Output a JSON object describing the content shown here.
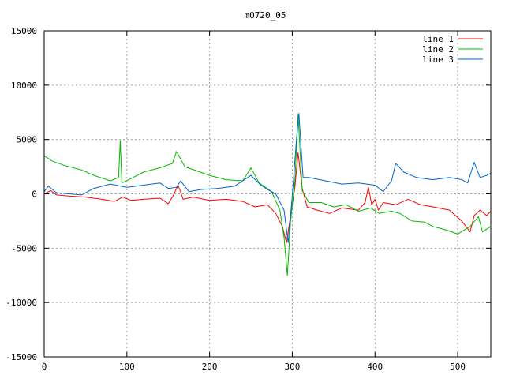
{
  "chart_data": {
    "type": "line",
    "title": "m0720_05",
    "xlabel": "",
    "ylabel": "",
    "xlim": [
      0,
      540
    ],
    "ylim": [
      -15000,
      15000
    ],
    "x_ticks": [
      0,
      100,
      200,
      300,
      400,
      500
    ],
    "y_ticks": [
      -15000,
      -10000,
      -5000,
      0,
      5000,
      10000,
      15000
    ],
    "grid": true,
    "legend_position": "top-right",
    "series": [
      {
        "name": "line 1",
        "color": "#ff0000",
        "points": [
          [
            0,
            0
          ],
          [
            8,
            300
          ],
          [
            15,
            -100
          ],
          [
            30,
            -200
          ],
          [
            50,
            -300
          ],
          [
            70,
            -500
          ],
          [
            85,
            -700
          ],
          [
            95,
            -300
          ],
          [
            105,
            -600
          ],
          [
            120,
            -500
          ],
          [
            140,
            -400
          ],
          [
            150,
            -900
          ],
          [
            155,
            -300
          ],
          [
            162,
            800
          ],
          [
            168,
            -500
          ],
          [
            180,
            -300
          ],
          [
            200,
            -600
          ],
          [
            220,
            -500
          ],
          [
            240,
            -700
          ],
          [
            255,
            -1200
          ],
          [
            270,
            -1000
          ],
          [
            280,
            -1800
          ],
          [
            288,
            -3000
          ],
          [
            293,
            -4500
          ],
          [
            298,
            -2000
          ],
          [
            303,
            500
          ],
          [
            307,
            3800
          ],
          [
            312,
            500
          ],
          [
            318,
            -1200
          ],
          [
            330,
            -1500
          ],
          [
            345,
            -1800
          ],
          [
            360,
            -1300
          ],
          [
            380,
            -1500
          ],
          [
            388,
            -800
          ],
          [
            392,
            600
          ],
          [
            396,
            -1000
          ],
          [
            400,
            -500
          ],
          [
            404,
            -1500
          ],
          [
            410,
            -800
          ],
          [
            425,
            -1000
          ],
          [
            440,
            -500
          ],
          [
            455,
            -1000
          ],
          [
            470,
            -1200
          ],
          [
            490,
            -1500
          ],
          [
            505,
            -2500
          ],
          [
            515,
            -3500
          ],
          [
            520,
            -2000
          ],
          [
            527,
            -1500
          ],
          [
            535,
            -2000
          ],
          [
            540,
            -1600
          ]
        ]
      },
      {
        "name": "line 2",
        "color": "#00bb00",
        "points": [
          [
            0,
            3500
          ],
          [
            10,
            3000
          ],
          [
            25,
            2600
          ],
          [
            45,
            2200
          ],
          [
            60,
            1700
          ],
          [
            80,
            1200
          ],
          [
            90,
            1500
          ],
          [
            92,
            4900
          ],
          [
            94,
            1000
          ],
          [
            105,
            1400
          ],
          [
            120,
            2000
          ],
          [
            140,
            2400
          ],
          [
            155,
            2800
          ],
          [
            160,
            3900
          ],
          [
            170,
            2500
          ],
          [
            185,
            2100
          ],
          [
            200,
            1700
          ],
          [
            220,
            1300
          ],
          [
            240,
            1200
          ],
          [
            250,
            2400
          ],
          [
            260,
            1000
          ],
          [
            275,
            200
          ],
          [
            285,
            -1500
          ],
          [
            290,
            -4000
          ],
          [
            294,
            -7500
          ],
          [
            298,
            -2500
          ],
          [
            303,
            1000
          ],
          [
            307,
            7300
          ],
          [
            312,
            300
          ],
          [
            320,
            -800
          ],
          [
            335,
            -800
          ],
          [
            350,
            -1200
          ],
          [
            365,
            -1000
          ],
          [
            380,
            -1600
          ],
          [
            395,
            -1300
          ],
          [
            405,
            -1800
          ],
          [
            420,
            -1600
          ],
          [
            430,
            -1800
          ],
          [
            445,
            -2500
          ],
          [
            460,
            -2600
          ],
          [
            470,
            -3000
          ],
          [
            485,
            -3300
          ],
          [
            500,
            -3700
          ],
          [
            515,
            -3000
          ],
          [
            525,
            -2100
          ],
          [
            530,
            -3500
          ],
          [
            540,
            -3000
          ]
        ]
      },
      {
        "name": "line 3",
        "color": "#0066cc",
        "points": [
          [
            0,
            200
          ],
          [
            5,
            700
          ],
          [
            15,
            100
          ],
          [
            30,
            0
          ],
          [
            45,
            -100
          ],
          [
            60,
            500
          ],
          [
            80,
            900
          ],
          [
            100,
            600
          ],
          [
            120,
            800
          ],
          [
            140,
            1000
          ],
          [
            150,
            500
          ],
          [
            160,
            600
          ],
          [
            165,
            1200
          ],
          [
            175,
            200
          ],
          [
            190,
            400
          ],
          [
            210,
            500
          ],
          [
            230,
            700
          ],
          [
            250,
            1700
          ],
          [
            262,
            800
          ],
          [
            270,
            400
          ],
          [
            280,
            0
          ],
          [
            290,
            -1500
          ],
          [
            295,
            -4500
          ],
          [
            300,
            -200
          ],
          [
            305,
            5000
          ],
          [
            308,
            7400
          ],
          [
            313,
            1500
          ],
          [
            320,
            1500
          ],
          [
            340,
            1200
          ],
          [
            360,
            900
          ],
          [
            380,
            1000
          ],
          [
            400,
            800
          ],
          [
            410,
            200
          ],
          [
            420,
            1200
          ],
          [
            425,
            2800
          ],
          [
            435,
            2000
          ],
          [
            450,
            1500
          ],
          [
            470,
            1300
          ],
          [
            490,
            1500
          ],
          [
            505,
            1300
          ],
          [
            512,
            1000
          ],
          [
            520,
            2900
          ],
          [
            527,
            1500
          ],
          [
            535,
            1700
          ],
          [
            540,
            1900
          ]
        ]
      }
    ]
  }
}
